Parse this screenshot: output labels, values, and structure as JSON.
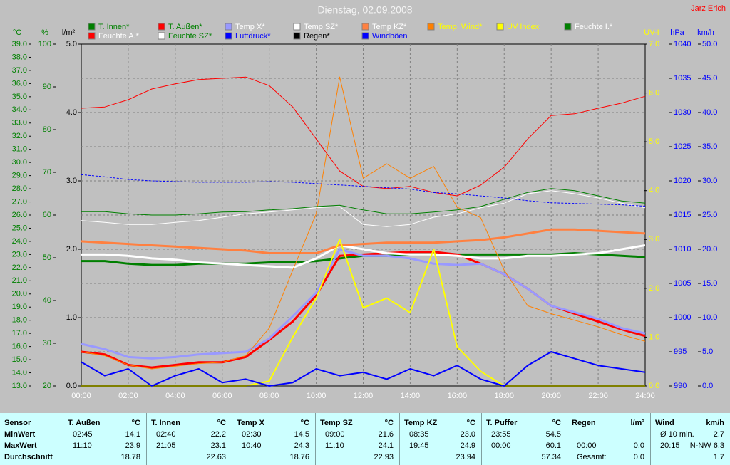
{
  "chart_data": {
    "type": "line",
    "title": "Dienstag, 02.09.2008",
    "author": "Jarz Erich",
    "x": [
      0,
      1,
      2,
      3,
      4,
      5,
      6,
      7,
      8,
      9,
      10,
      11,
      12,
      13,
      14,
      15,
      16,
      17,
      18,
      19,
      20,
      21,
      22,
      23,
      24
    ],
    "xlim": [
      0,
      24
    ],
    "xticks": [
      {
        "value": 0,
        "label": "00:00"
      },
      {
        "value": 2,
        "label": "02:00"
      },
      {
        "value": 4,
        "label": "04:00"
      },
      {
        "value": 6,
        "label": "06:00"
      },
      {
        "value": 8,
        "label": "08:00"
      },
      {
        "value": 10,
        "label": "10:00"
      },
      {
        "value": 12,
        "label": "12:00"
      },
      {
        "value": 14,
        "label": "14:00"
      },
      {
        "value": 16,
        "label": "16:00"
      },
      {
        "value": 18,
        "label": "18:00"
      },
      {
        "value": 20,
        "label": "20:00"
      },
      {
        "value": 22,
        "label": "22:00"
      },
      {
        "value": 24,
        "label": "24:00"
      }
    ],
    "grid": true,
    "grid_axis": 4,
    "axes": [
      {
        "label": "°C",
        "color": "#008000",
        "ylim": [
          13,
          39
        ],
        "yticks": [
          {
            "value": 13,
            "label": "13.0"
          },
          {
            "value": 14,
            "label": "14.0"
          },
          {
            "value": 15,
            "label": "15.0"
          },
          {
            "value": 16,
            "label": "16.0"
          },
          {
            "value": 17,
            "label": "17.0"
          },
          {
            "value": 18,
            "label": "18.0"
          },
          {
            "value": 19,
            "label": "19.0"
          },
          {
            "value": 20,
            "label": "20.0"
          },
          {
            "value": 21,
            "label": "21.0"
          },
          {
            "value": 22,
            "label": "22.0"
          },
          {
            "value": 23,
            "label": "23.0"
          },
          {
            "value": 24,
            "label": "24.0"
          },
          {
            "value": 25,
            "label": "25.0"
          },
          {
            "value": 26,
            "label": "26.0"
          },
          {
            "value": 27,
            "label": "27.0"
          },
          {
            "value": 28,
            "label": "28.0"
          },
          {
            "value": 29,
            "label": "29.0"
          },
          {
            "value": 30,
            "label": "30.0"
          },
          {
            "value": 31,
            "label": "31.0"
          },
          {
            "value": 32,
            "label": "32.0"
          },
          {
            "value": 33,
            "label": "33.0"
          },
          {
            "value": 34,
            "label": "34.0"
          },
          {
            "value": 35,
            "label": "35.0"
          },
          {
            "value": 36,
            "label": "36.0"
          },
          {
            "value": 37,
            "label": "37.0"
          },
          {
            "value": 38,
            "label": "38.0"
          },
          {
            "value": 39,
            "label": "39.0"
          }
        ]
      },
      {
        "label": "%",
        "color": "#008000",
        "ylim": [
          20,
          100
        ],
        "yticks": [
          20,
          30,
          40,
          50,
          60,
          70,
          80,
          90,
          100
        ]
      },
      {
        "label": "l/m²",
        "color": "#000000",
        "ylim": [
          0,
          5
        ],
        "yticks": [
          {
            "value": 0,
            "label": "0.0"
          },
          {
            "value": 1,
            "label": "1.0"
          },
          {
            "value": 2,
            "label": "2.0"
          },
          {
            "value": 3,
            "label": "3.0"
          },
          {
            "value": 4,
            "label": "4.0"
          },
          {
            "value": 5,
            "label": "5.0"
          }
        ]
      },
      {
        "label": "UV-I",
        "color": "#ffff00",
        "ylim": [
          0,
          7
        ],
        "yticks": [
          {
            "value": 0,
            "label": "0.0"
          },
          {
            "value": 1,
            "label": "1.0"
          },
          {
            "value": 2,
            "label": "2.0"
          },
          {
            "value": 3,
            "label": "3.0"
          },
          {
            "value": 4,
            "label": "4.0"
          },
          {
            "value": 5,
            "label": "5.0"
          },
          {
            "value": 6,
            "label": "6.0"
          },
          {
            "value": 7,
            "label": "7.0"
          }
        ]
      },
      {
        "label": "hPa",
        "color": "#0000ff",
        "ylim": [
          990,
          1040
        ],
        "yticks": [
          990,
          995,
          1000,
          1005,
          1010,
          1015,
          1020,
          1025,
          1030,
          1035,
          1040
        ]
      },
      {
        "label": "km/h",
        "color": "#0000ff",
        "ylim": [
          0,
          50
        ],
        "yticks": [
          {
            "value": 0,
            "label": "0.0"
          },
          {
            "value": 5,
            "label": "5.0"
          },
          {
            "value": 10,
            "label": "10.0"
          },
          {
            "value": 15,
            "label": "15.0"
          },
          {
            "value": 20,
            "label": "20.0"
          },
          {
            "value": 25,
            "label": "25.0"
          },
          {
            "value": 30,
            "label": "30.0"
          },
          {
            "value": 35,
            "label": "35.0"
          },
          {
            "value": 40,
            "label": "40.0"
          },
          {
            "value": 45,
            "label": "45.0"
          },
          {
            "value": 50,
            "label": "50.0"
          }
        ]
      }
    ],
    "series": [
      {
        "name": "T. Innen*",
        "color": "#007f00",
        "legend_text_color": "#008000",
        "axis": 0,
        "line_width": 3,
        "values": [
          22.5,
          22.5,
          22.3,
          22.2,
          22.2,
          22.3,
          22.3,
          22.3,
          22.4,
          22.4,
          22.5,
          22.7,
          22.9,
          22.9,
          23.0,
          23.0,
          23.0,
          23.0,
          23.0,
          23.0,
          23.0,
          23.1,
          23.0,
          22.9,
          22.8
        ]
      },
      {
        "name": "T. Außen*",
        "color": "#ff0000",
        "legend_text_color": "#008000",
        "axis": 0,
        "line_width": 3,
        "values": [
          15.6,
          15.4,
          14.6,
          14.4,
          14.6,
          14.8,
          14.8,
          15.2,
          16.5,
          17.9,
          19.9,
          22.9,
          23.0,
          23.1,
          23.2,
          23.2,
          23.0,
          22.3,
          21.5,
          20.4,
          19.1,
          18.5,
          17.9,
          17.3,
          16.8
        ]
      },
      {
        "name": "Temp X*",
        "color": "#9999ff",
        "legend_text_color": "#ffffff",
        "axis": 0,
        "line_width": 3,
        "values": [
          16.2,
          15.8,
          15.2,
          15.1,
          15.2,
          15.4,
          15.5,
          15.6,
          16.6,
          18.3,
          20.1,
          23.4,
          22.9,
          22.9,
          22.7,
          22.3,
          22.2,
          22.3,
          21.5,
          20.4,
          19.1,
          18.6,
          18.1,
          17.4,
          17.0
        ]
      },
      {
        "name": "Temp SZ*",
        "color": "#ffffff",
        "legend_text_color": "#ffffff",
        "axis": 0,
        "line_width": 3,
        "values": [
          23.0,
          23.0,
          22.9,
          22.7,
          22.6,
          22.4,
          22.3,
          22.2,
          22.1,
          22.0,
          22.7,
          23.7,
          23.4,
          23.1,
          23.0,
          23.0,
          22.9,
          22.7,
          22.7,
          22.9,
          22.9,
          23.0,
          23.1,
          23.4,
          23.7
        ]
      },
      {
        "name": "Temp KZ*",
        "color": "#ff8040",
        "legend_text_color": "#ffffff",
        "axis": 0,
        "line_width": 3,
        "values": [
          24.0,
          23.9,
          23.8,
          23.7,
          23.6,
          23.5,
          23.4,
          23.3,
          23.1,
          23.1,
          23.1,
          23.7,
          23.8,
          23.9,
          23.9,
          23.9,
          24.0,
          24.1,
          24.3,
          24.6,
          24.9,
          24.9,
          24.8,
          24.7,
          24.6
        ]
      },
      {
        "name": "Temp. Wind*",
        "color": "#ff8000",
        "legend_text_color": "#ffff00",
        "axis": 0,
        "line_width": 1,
        "values": [
          15.6,
          15.3,
          14.6,
          14.3,
          14.5,
          14.7,
          14.8,
          15.3,
          17.4,
          21.8,
          26.1,
          36.5,
          28.8,
          29.9,
          28.8,
          29.7,
          26.6,
          25.8,
          21.8,
          19.1,
          18.5,
          18.0,
          17.5,
          16.9,
          16.4
        ]
      },
      {
        "name": "UV Index",
        "color": "#ffff00",
        "legend_text_color": "#ffff00",
        "axis": 3,
        "line_width": 2,
        "values": [
          0,
          0,
          0,
          0,
          0,
          0,
          0,
          0,
          0.1,
          1.0,
          1.8,
          3.0,
          1.6,
          1.8,
          1.5,
          2.8,
          0.8,
          0.3,
          0,
          0,
          0,
          0,
          0,
          0,
          0
        ]
      },
      {
        "name": "Feuchte I.*",
        "color": "#008000",
        "legend_text_color": "#ffffff",
        "axis": 1,
        "line_width": 1,
        "values": [
          60.8,
          60.8,
          60.3,
          60.0,
          60.0,
          60.3,
          60.7,
          60.8,
          61.2,
          61.5,
          62.0,
          62.3,
          61.2,
          60.3,
          60.3,
          60.7,
          61.2,
          62.0,
          63.7,
          65.3,
          66.2,
          65.7,
          64.5,
          63.3,
          62.8
        ]
      },
      {
        "name": "Feuchte A.*",
        "color": "#ff0000",
        "legend_text_color": "#ffffff",
        "axis": 1,
        "line_width": 1,
        "values": [
          85.0,
          85.3,
          87.0,
          89.5,
          90.7,
          91.7,
          92.0,
          92.3,
          90.3,
          85.3,
          77.8,
          70.3,
          66.7,
          66.2,
          66.7,
          65.3,
          64.5,
          67.0,
          71.2,
          77.8,
          83.3,
          83.7,
          85.0,
          86.2,
          87.8
        ]
      },
      {
        "name": "Feuchte SZ*",
        "color": "#ffffff",
        "legend_text_color": "#008000",
        "axis": 1,
        "line_width": 1,
        "values": [
          58.7,
          58.3,
          57.8,
          57.8,
          58.3,
          58.7,
          59.5,
          60.3,
          60.7,
          61.2,
          61.7,
          62.0,
          57.8,
          57.3,
          57.8,
          59.5,
          60.3,
          61.7,
          62.8,
          65.0,
          65.7,
          65.0,
          64.0,
          62.8,
          61.7
        ]
      },
      {
        "name": "Luftdruck*",
        "color": "#0000ff",
        "legend_text_color": "#0000ff",
        "axis": 4,
        "line_width": 1,
        "dashed": true,
        "values": [
          1020.9,
          1020.6,
          1020.2,
          1020.0,
          1019.9,
          1019.8,
          1019.8,
          1019.8,
          1019.9,
          1019.8,
          1019.6,
          1019.4,
          1019.2,
          1019.0,
          1018.8,
          1018.3,
          1018.1,
          1017.8,
          1017.5,
          1017.1,
          1016.8,
          1016.7,
          1016.6,
          1016.5,
          1016.3
        ]
      },
      {
        "name": "Regen*",
        "color": "#000000",
        "legend_text_color": "#000000",
        "axis": 2,
        "line_width": 1,
        "values": [
          0,
          0,
          0,
          0,
          0,
          0,
          0,
          0,
          0,
          0,
          0,
          0,
          0,
          0,
          0,
          0,
          0,
          0,
          0,
          0,
          0,
          0,
          0,
          0,
          0
        ]
      },
      {
        "name": "Windböen",
        "color": "#0000ff",
        "legend_text_color": "#0000ff",
        "axis": 5,
        "line_width": 2,
        "values": [
          3.5,
          1.5,
          2.5,
          0,
          1.5,
          2.5,
          0.5,
          1.0,
          0,
          0.5,
          2.5,
          1.5,
          2.0,
          1.0,
          2.5,
          1.5,
          3.0,
          1.0,
          0,
          3.0,
          5.0,
          4.0,
          3.0,
          2.5,
          2.0
        ]
      }
    ]
  },
  "table": {
    "sensor": {
      "name": "Sensor",
      "rows": [
        "MinWert",
        "MaxWert",
        "Durchschnitt"
      ]
    },
    "columns": [
      {
        "name": "T. Außen",
        "unit": "°C",
        "rows": [
          [
            "02:45",
            "14.1"
          ],
          [
            "11:10",
            "23.9"
          ],
          [
            null,
            "18.78"
          ]
        ]
      },
      {
        "name": "T. Innen",
        "unit": "°C",
        "rows": [
          [
            "02:40",
            "22.2"
          ],
          [
            "21:05",
            "23.1"
          ],
          [
            null,
            "22.63"
          ]
        ]
      },
      {
        "name": "Temp X",
        "unit": "°C",
        "rows": [
          [
            "02:30",
            "14.5"
          ],
          [
            "10:40",
            "24.3"
          ],
          [
            null,
            "18.76"
          ]
        ]
      },
      {
        "name": "Temp SZ",
        "unit": "°C",
        "rows": [
          [
            "09:00",
            "21.6"
          ],
          [
            "11:10",
            "24.1"
          ],
          [
            null,
            "22.93"
          ]
        ]
      },
      {
        "name": "Temp KZ",
        "unit": "°C",
        "rows": [
          [
            "08:35",
            "23.0"
          ],
          [
            "19:45",
            "24.9"
          ],
          [
            null,
            "23.94"
          ]
        ]
      },
      {
        "name": "T. Puffer",
        "unit": "°C",
        "rows": [
          [
            "23:55",
            "54.5"
          ],
          [
            "00:00",
            "60.1"
          ],
          [
            null,
            "57.34"
          ]
        ]
      },
      {
        "name": "Regen",
        "unit": "l/m²",
        "rows": [
          [
            null,
            null
          ],
          [
            "00:00",
            "0.0"
          ],
          [
            "Gesamt:",
            "0.0"
          ]
        ]
      },
      {
        "name": "Wind",
        "unit": "km/h",
        "rows": [
          [
            "Ø 10 min.",
            "2.7"
          ],
          [
            "20:15",
            "N-NW 6.3"
          ],
          [
            null,
            "1.7"
          ]
        ]
      }
    ]
  }
}
